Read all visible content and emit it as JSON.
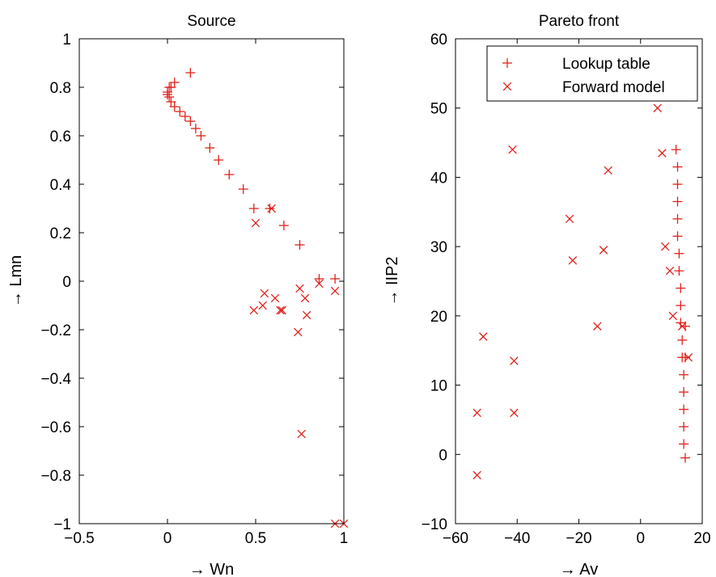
{
  "chart_data": [
    {
      "type": "scatter",
      "title": "Source",
      "xlabel": "→ Wn",
      "ylabel": "→ Lmn",
      "xlim": [
        -0.5,
        1
      ],
      "ylim": [
        -1,
        1
      ],
      "xticks": [
        -0.5,
        0,
        0.5,
        1
      ],
      "xtick_labels": [
        "−0.5",
        "0",
        "0.5",
        "1"
      ],
      "yticks": [
        -1,
        -0.8,
        -0.6,
        -0.4,
        -0.2,
        0,
        0.2,
        0.4,
        0.6,
        0.8,
        1
      ],
      "ytick_labels": [
        "−1",
        "−0.8",
        "−0.6",
        "−0.4",
        "−0.2",
        "0",
        "0.2",
        "0.4",
        "0.6",
        "0.8",
        "1"
      ],
      "grid": false,
      "series": [
        {
          "marker": "plus",
          "color": "#e0221b",
          "x": [
            0.13,
            0.04,
            0.02,
            0.01,
            0.0,
            0.0,
            0.01,
            0.02,
            0.04,
            0.07,
            0.1,
            0.13,
            0.16,
            0.19,
            0.24,
            0.29,
            0.35,
            0.43,
            0.49,
            0.58,
            0.66,
            0.75,
            0.86,
            0.95
          ],
          "y": [
            0.86,
            0.82,
            0.8,
            0.8,
            0.78,
            0.77,
            0.76,
            0.74,
            0.72,
            0.7,
            0.68,
            0.66,
            0.63,
            0.6,
            0.55,
            0.5,
            0.44,
            0.38,
            0.3,
            0.3,
            0.23,
            0.15,
            0.01,
            0.01
          ]
        },
        {
          "marker": "x",
          "color": "#e0221b",
          "x": [
            0.59,
            0.5,
            0.55,
            0.54,
            0.49,
            0.61,
            0.64,
            0.65,
            0.75,
            0.78,
            0.79,
            0.86,
            0.74,
            0.95,
            0.76,
            0.95,
            1.0
          ],
          "y": [
            0.3,
            0.24,
            -0.05,
            -0.1,
            -0.12,
            -0.07,
            -0.12,
            -0.12,
            -0.03,
            -0.07,
            -0.14,
            -0.01,
            -0.21,
            -0.04,
            -0.63,
            -1.0,
            -1.0
          ]
        }
      ]
    },
    {
      "type": "scatter",
      "title": "Pareto front",
      "xlabel": "→ Av",
      "ylabel": "→ IIP2",
      "xlim": [
        -60,
        20
      ],
      "ylim": [
        -10,
        60
      ],
      "xticks": [
        -60,
        -40,
        -20,
        0,
        20
      ],
      "xtick_labels": [
        "−60",
        "−40",
        "−20",
        "0",
        "20"
      ],
      "yticks": [
        -10,
        0,
        10,
        20,
        30,
        40,
        50,
        60
      ],
      "ytick_labels": [
        "−10",
        "0",
        "10",
        "20",
        "30",
        "40",
        "50",
        "60"
      ],
      "grid": false,
      "legend_position": "top-right",
      "series": [
        {
          "name": "Lookup table",
          "marker": "plus",
          "color": "#e0221b",
          "x": [
            11.5,
            12.0,
            12.0,
            12.0,
            12.0,
            12.0,
            12.5,
            12.5,
            13.0,
            13.0,
            13.0,
            13.5,
            13.5,
            14.0,
            14.0,
            14.0,
            14.0,
            14.0,
            14.5,
            14.5,
            14.5
          ],
          "y": [
            44,
            41.5,
            39,
            36.5,
            34,
            31.5,
            29,
            26.5,
            24,
            21.5,
            19,
            16.5,
            14,
            11.5,
            9,
            6.5,
            4,
            1.5,
            -0.5,
            14,
            18.5
          ]
        },
        {
          "name": "Forward model",
          "marker": "x",
          "color": "#e0221b",
          "x": [
            5.5,
            -41.5,
            7.0,
            -10.5,
            -23.0,
            8.0,
            -22.0,
            -12.0,
            9.5,
            -14.0,
            10.5,
            13.5,
            -51.0,
            15.5,
            -41.0,
            -53.0,
            -41.0,
            -53.0
          ],
          "y": [
            50,
            44,
            43.5,
            41,
            34,
            30,
            28,
            29.5,
            26.5,
            18.5,
            20,
            18.5,
            17,
            14,
            13.5,
            6,
            6,
            -3
          ]
        }
      ]
    }
  ]
}
